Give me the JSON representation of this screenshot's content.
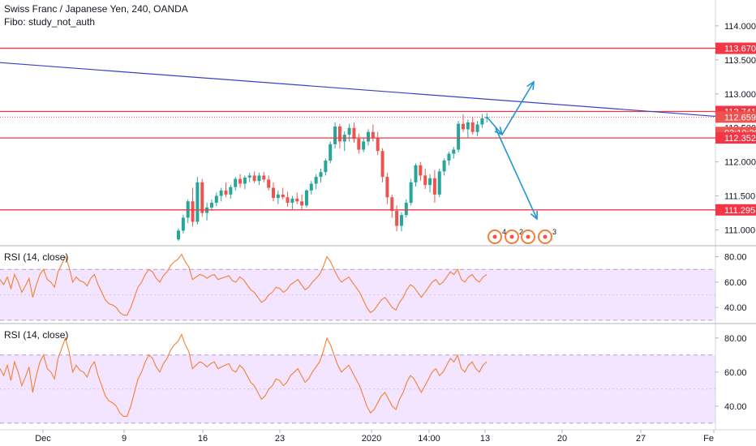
{
  "header": {
    "symbol_line": "Swiss Franc / Japanese Yen, 240, OANDA",
    "study_line": "Fibo: study_not_auth"
  },
  "colors": {
    "bull": "#26a69a",
    "bear": "#ef5350",
    "resistance": "#f23645",
    "trendline": "#3a3fc4",
    "arrow": "#2196d3",
    "rsi_line": "#f57f32",
    "rsi_fill": "#f3e5ff",
    "rsi_band": "#b896d8",
    "axis_text": "#131722",
    "grid": "#e0e3eb"
  },
  "price_axis": {
    "ticks": [
      "114.000",
      "113.500",
      "113.000",
      "112.500",
      "112.000",
      "111.500",
      "111.000"
    ],
    "tick_values": [
      114.0,
      113.5,
      113.0,
      112.5,
      112.0,
      111.5,
      111.0
    ],
    "range": [
      110.78,
      114.38
    ]
  },
  "price_labels": [
    {
      "text": "113.670",
      "value": 113.67,
      "kind": "level"
    },
    {
      "text": "112.741",
      "value": 112.741,
      "kind": "level"
    },
    {
      "text": "112.659",
      "value": 112.659,
      "kind": "current"
    },
    {
      "text": "03:10:30",
      "value": 112.5,
      "kind": "countdown"
    },
    {
      "text": "112.352",
      "value": 112.352,
      "kind": "level"
    },
    {
      "text": "111.295",
      "value": 111.295,
      "kind": "level"
    }
  ],
  "horizontal_levels": [
    113.67,
    112.741,
    112.352,
    111.295
  ],
  "current_price": 112.659,
  "time_axis": {
    "labels": [
      "Dec",
      "9",
      "16",
      "23",
      "2020",
      "14:00",
      "13",
      "20",
      "27",
      "Fe"
    ]
  },
  "rsi_panels": [
    {
      "title": "RSI (14, close)",
      "ticks": [
        "80.00",
        "60.00",
        "40.00"
      ],
      "tick_values": [
        80,
        60,
        40
      ],
      "band": [
        30,
        70
      ],
      "mid": 50,
      "range": [
        28,
        88
      ]
    },
    {
      "title": "RSI (14, close)",
      "ticks": [
        "80.00",
        "60.00",
        "40.00"
      ],
      "tick_values": [
        80,
        60,
        40
      ],
      "band": [
        30,
        70
      ],
      "mid": 50,
      "range": [
        28,
        88
      ]
    }
  ],
  "wave_labels": [
    "4",
    "2",
    "",
    "3"
  ],
  "chart_data": {
    "type": "candlestick",
    "title": "Swiss Franc / Japanese Yen, 240, OANDA",
    "candles": [
      [
        110.86,
        111.02,
        110.84,
        110.99
      ],
      [
        110.99,
        111.22,
        110.95,
        111.18
      ],
      [
        111.18,
        111.45,
        111.1,
        111.42
      ],
      [
        111.42,
        111.62,
        111.05,
        111.12
      ],
      [
        111.12,
        111.78,
        111.08,
        111.7
      ],
      [
        111.7,
        111.75,
        111.2,
        111.25
      ],
      [
        111.25,
        111.4,
        111.14,
        111.33
      ],
      [
        111.33,
        111.45,
        111.28,
        111.4
      ],
      [
        111.4,
        111.55,
        111.35,
        111.5
      ],
      [
        111.5,
        111.62,
        111.42,
        111.58
      ],
      [
        111.58,
        111.7,
        111.48,
        111.52
      ],
      [
        111.52,
        111.66,
        111.46,
        111.63
      ],
      [
        111.63,
        111.78,
        111.58,
        111.75
      ],
      [
        111.75,
        111.82,
        111.62,
        111.68
      ],
      [
        111.68,
        111.8,
        111.6,
        111.77
      ],
      [
        111.77,
        111.84,
        111.7,
        111.8
      ],
      [
        111.8,
        111.86,
        111.69,
        111.72
      ],
      [
        111.72,
        111.84,
        111.66,
        111.8
      ],
      [
        111.8,
        111.85,
        111.7,
        111.74
      ],
      [
        111.74,
        111.8,
        111.58,
        111.62
      ],
      [
        111.62,
        111.7,
        111.42,
        111.47
      ],
      [
        111.47,
        111.58,
        111.38,
        111.52
      ],
      [
        111.52,
        111.62,
        111.45,
        111.48
      ],
      [
        111.48,
        111.56,
        111.34,
        111.4
      ],
      [
        111.4,
        111.5,
        111.3,
        111.46
      ],
      [
        111.46,
        111.55,
        111.38,
        111.42
      ],
      [
        111.42,
        111.52,
        111.3,
        111.36
      ],
      [
        111.36,
        111.6,
        111.33,
        111.58
      ],
      [
        111.58,
        111.72,
        111.52,
        111.68
      ],
      [
        111.68,
        111.82,
        111.6,
        111.78
      ],
      [
        111.78,
        111.9,
        111.7,
        111.85
      ],
      [
        111.85,
        112.05,
        111.8,
        112.02
      ],
      [
        112.02,
        112.3,
        111.98,
        112.26
      ],
      [
        112.26,
        112.58,
        112.2,
        112.52
      ],
      [
        112.52,
        112.56,
        112.2,
        112.3
      ],
      [
        112.3,
        112.45,
        112.16,
        112.4
      ],
      [
        112.4,
        112.56,
        112.3,
        112.5
      ],
      [
        112.5,
        112.58,
        112.28,
        112.34
      ],
      [
        112.34,
        112.42,
        112.12,
        112.18
      ],
      [
        112.18,
        112.36,
        112.14,
        112.3
      ],
      [
        112.3,
        112.48,
        112.24,
        112.44
      ],
      [
        112.44,
        112.55,
        112.3,
        112.36
      ],
      [
        112.36,
        112.44,
        112.1,
        112.16
      ],
      [
        112.16,
        112.2,
        111.7,
        111.78
      ],
      [
        111.78,
        111.84,
        111.38,
        111.48
      ],
      [
        111.48,
        111.52,
        111.18,
        111.28
      ],
      [
        111.28,
        111.36,
        110.98,
        111.06
      ],
      [
        111.06,
        111.26,
        110.98,
        111.22
      ],
      [
        111.22,
        111.45,
        111.18,
        111.4
      ],
      [
        111.4,
        111.75,
        111.36,
        111.7
      ],
      [
        111.7,
        111.98,
        111.64,
        111.95
      ],
      [
        111.95,
        112.0,
        111.72,
        111.8
      ],
      [
        111.8,
        111.9,
        111.6,
        111.66
      ],
      [
        111.66,
        111.82,
        111.55,
        111.76
      ],
      [
        111.76,
        111.88,
        111.4,
        111.52
      ],
      [
        111.52,
        111.9,
        111.48,
        111.86
      ],
      [
        111.86,
        112.05,
        111.8,
        112.02
      ],
      [
        112.02,
        112.15,
        111.95,
        112.12
      ],
      [
        112.12,
        112.22,
        112.05,
        112.18
      ],
      [
        112.18,
        112.6,
        112.14,
        112.56
      ],
      [
        112.56,
        112.7,
        112.44,
        112.48
      ],
      [
        112.48,
        112.62,
        112.36,
        112.58
      ],
      [
        112.58,
        112.66,
        112.4,
        112.44
      ],
      [
        112.44,
        112.6,
        112.38,
        112.55
      ],
      [
        112.55,
        112.7,
        112.5,
        112.64
      ],
      [
        112.64,
        112.72,
        112.58,
        112.66
      ]
    ],
    "levels": [
      113.67,
      112.741,
      112.352,
      111.295
    ],
    "rsi": [
      62,
      58,
      64,
      55,
      66,
      60,
      52,
      57,
      63,
      48,
      58,
      66,
      70,
      62,
      60,
      56,
      68,
      74,
      80,
      72,
      60,
      64,
      61,
      60,
      57,
      63,
      66,
      58,
      52,
      46,
      43,
      42,
      40,
      36,
      34,
      34,
      40,
      48,
      56,
      60,
      66,
      70,
      68,
      63,
      60,
      65,
      68,
      73,
      76,
      78,
      82,
      76,
      72,
      62,
      64,
      66,
      65,
      63,
      65,
      66,
      62,
      63,
      64,
      65,
      61,
      60,
      64,
      62,
      58,
      54,
      52,
      48,
      44,
      46,
      50,
      52,
      56,
      55,
      52,
      54,
      58,
      60,
      62,
      58,
      54,
      56,
      60,
      63,
      66,
      72,
      80,
      76,
      70,
      64,
      60,
      62,
      64,
      60,
      56,
      52,
      46,
      40,
      36,
      38,
      42,
      46,
      48,
      44,
      40,
      38,
      44,
      48,
      54,
      58,
      56,
      52,
      48,
      52,
      56,
      60,
      62,
      58,
      60,
      64,
      68,
      66,
      70,
      62,
      60,
      64,
      66,
      62,
      60,
      64,
      66
    ]
  }
}
